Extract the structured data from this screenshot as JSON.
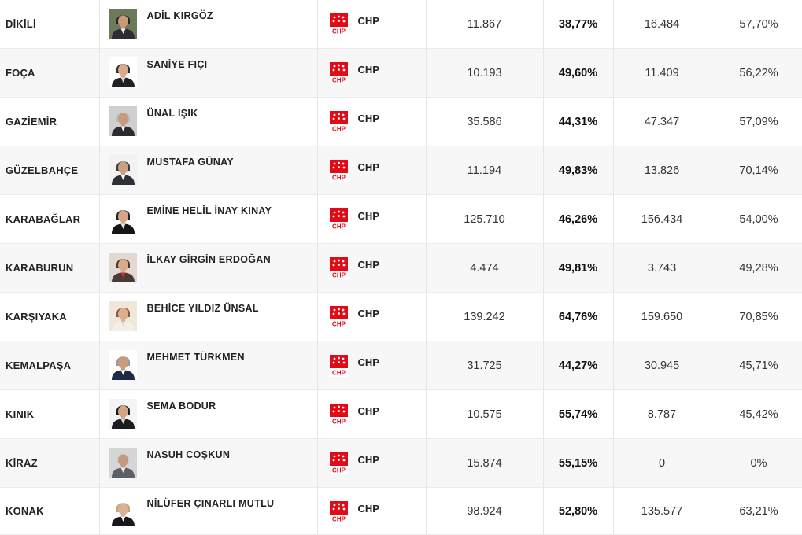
{
  "rows": [
    {
      "district": "DİKİLİ",
      "candidate": "ADİL KIRGÖZ",
      "party": "CHP",
      "votes": "11.867",
      "vote_pct": "38,77%",
      "prev_votes": "16.484",
      "prev_pct": "57,70%",
      "photo": {
        "bg": "#6b7a5a",
        "skin": "#c99a7a",
        "hair": "#2a2420",
        "suit": "#2b2d33",
        "shirt": "#e9e9e9"
      }
    },
    {
      "district": "FOÇA",
      "candidate": "SANİYE FIÇI",
      "party": "CHP",
      "votes": "10.193",
      "vote_pct": "49,60%",
      "prev_votes": "11.409",
      "prev_pct": "56,22%",
      "photo": {
        "bg": "#ffffff",
        "skin": "#d8a98b",
        "hair": "#3a2a20",
        "suit": "#1f1f24",
        "shirt": "#e0d6cc"
      }
    },
    {
      "district": "GAZİEMİR",
      "candidate": "ÜNAL IŞIK",
      "party": "CHP",
      "votes": "35.586",
      "vote_pct": "44,31%",
      "prev_votes": "47.347",
      "prev_pct": "57,09%",
      "photo": {
        "bg": "#cfcfcf",
        "skin": "#c69b80",
        "hair": "#bcbcbc",
        "suit": "#2c2c30",
        "shirt": "#f2f2f2"
      }
    },
    {
      "district": "GÜZELBAHÇE",
      "candidate": "MUSTAFA GÜNAY",
      "party": "CHP",
      "votes": "11.194",
      "vote_pct": "49,83%",
      "prev_votes": "13.826",
      "prev_pct": "70,14%",
      "photo": {
        "bg": "#f2f2f2",
        "skin": "#c9a084",
        "hair": "#3b3b3b",
        "suit": "#2e3138",
        "shirt": "#ffffff"
      }
    },
    {
      "district": "KARABAĞLAR",
      "candidate": "EMİNE HELİL İNAY KINAY",
      "party": "CHP",
      "votes": "125.710",
      "vote_pct": "46,26%",
      "prev_votes": "156.434",
      "prev_pct": "54,00%",
      "photo": {
        "bg": "#ffffff",
        "skin": "#d5a688",
        "hair": "#2a2220",
        "suit": "#151517",
        "shirt": "#e8e0d8"
      }
    },
    {
      "district": "KARABURUN",
      "candidate": "İLKAY GİRGİN ERDOĞAN",
      "party": "CHP",
      "votes": "4.474",
      "vote_pct": "49,81%",
      "prev_votes": "3.743",
      "prev_pct": "49,28%",
      "photo": {
        "bg": "#e2dad2",
        "skin": "#d9ab8e",
        "hair": "#5a3526",
        "suit": "#4a3a3a",
        "shirt": "#c0392b"
      }
    },
    {
      "district": "KARŞIYAKA",
      "candidate": "BEHİCE YILDIZ ÜNSAL",
      "party": "CHP",
      "votes": "139.242",
      "vote_pct": "64,76%",
      "prev_votes": "159.650",
      "prev_pct": "70,85%",
      "photo": {
        "bg": "#efe6dc",
        "skin": "#dcae90",
        "hair": "#8a5a3a",
        "suit": "#f3efe8",
        "shirt": "#e6d8c8"
      }
    },
    {
      "district": "KEMALPAŞA",
      "candidate": "MEHMET TÜRKMEN",
      "party": "CHP",
      "votes": "31.725",
      "vote_pct": "44,27%",
      "prev_votes": "30.945",
      "prev_pct": "45,71%",
      "photo": {
        "bg": "#ffffff",
        "skin": "#c99c80",
        "hair": "#9a9a9a",
        "suit": "#1e2a48",
        "shirt": "#ffffff"
      }
    },
    {
      "district": "KINIK",
      "candidate": "SEMA BODUR",
      "party": "CHP",
      "votes": "10.575",
      "vote_pct": "55,74%",
      "prev_votes": "8.787",
      "prev_pct": "45,42%",
      "photo": {
        "bg": "#f4f4f4",
        "skin": "#d4a486",
        "hair": "#1a1a1e",
        "suit": "#1c1c20",
        "shirt": "#d9d9d9"
      }
    },
    {
      "district": "KİRAZ",
      "candidate": "NASUH COŞKUN",
      "party": "CHP",
      "votes": "15.874",
      "vote_pct": "55,15%",
      "prev_votes": "0",
      "prev_pct": "0%",
      "photo": {
        "bg": "#d6d6d6",
        "skin": "#c39a80",
        "hair": "#cfcfcf",
        "suit": "#5c5f66",
        "shirt": "#eeeeee"
      }
    },
    {
      "district": "KONAK",
      "candidate": "NİLÜFER ÇINARLI MUTLU",
      "party": "CHP",
      "votes": "98.924",
      "vote_pct": "52,80%",
      "prev_votes": "135.577",
      "prev_pct": "63,21%",
      "photo": {
        "bg": "#ffffff",
        "skin": "#dcb096",
        "hair": "#c9a36a",
        "suit": "#18181c",
        "shirt": "#f0ece6"
      }
    }
  ],
  "party_logo": {
    "text": "CHP",
    "red": "#e30a17",
    "white": "#ffffff"
  }
}
